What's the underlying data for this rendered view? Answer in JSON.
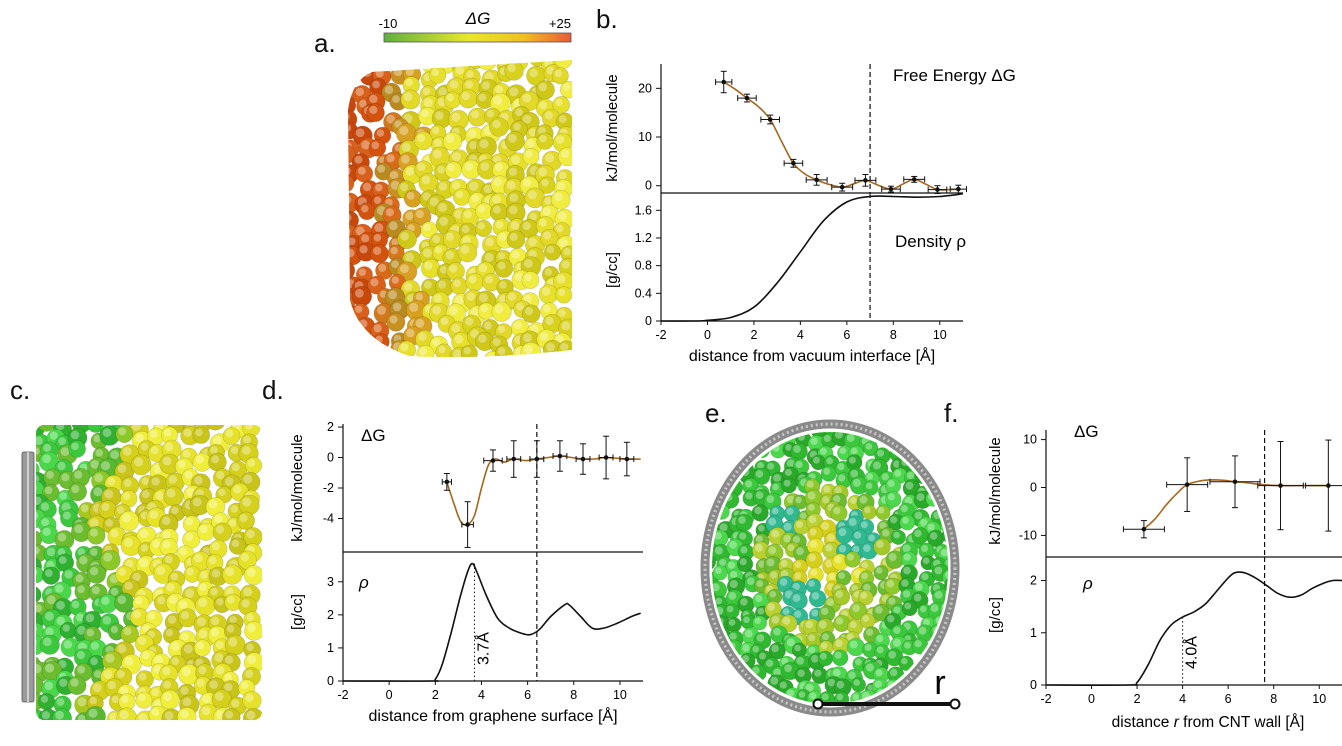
{
  "panels": {
    "a": {
      "label": "a.",
      "colorbar": {
        "symbol": "ΔG",
        "min_label": "-10",
        "max_label": "+25",
        "colors": [
          "#5fb040",
          "#e8e82a",
          "#f0c020",
          "#e85a3a"
        ]
      }
    },
    "b": {
      "label": "b."
    },
    "c": {
      "label": "c."
    },
    "d": {
      "label": "d."
    },
    "e": {
      "label": "e.",
      "scale_label": "r"
    },
    "f": {
      "label": "f."
    }
  },
  "chart_data": [
    {
      "id": "b_top",
      "type": "scatter",
      "annotation": "Free Energy ΔG",
      "ylabel": "kJ/mol/molecule",
      "xlim": [
        -2,
        11
      ],
      "ylim": [
        -1.5,
        25
      ],
      "yticks": [
        0,
        10,
        20
      ],
      "vline_x": 7.0,
      "points": [
        {
          "x": 0.7,
          "y": 21.3,
          "yerr": 2.2,
          "xerr": 0.35
        },
        {
          "x": 1.7,
          "y": 18.0,
          "yerr": 0.8,
          "xerr": 0.4
        },
        {
          "x": 2.7,
          "y": 13.6,
          "yerr": 0.9,
          "xerr": 0.4
        },
        {
          "x": 3.7,
          "y": 4.6,
          "yerr": 0.8,
          "xerr": 0.4
        },
        {
          "x": 4.7,
          "y": 1.2,
          "yerr": 1.1,
          "xerr": 0.45
        },
        {
          "x": 5.8,
          "y": -0.3,
          "yerr": 0.8,
          "xerr": 0.45
        },
        {
          "x": 6.8,
          "y": 1.1,
          "yerr": 1.2,
          "xerr": 0.45
        },
        {
          "x": 7.9,
          "y": -0.7,
          "yerr": 0.6,
          "xerr": 0.4
        },
        {
          "x": 8.9,
          "y": 1.3,
          "yerr": 0.6,
          "xerr": 0.45
        },
        {
          "x": 9.9,
          "y": -0.8,
          "yerr": 0.8,
          "xerr": 0.4
        },
        {
          "x": 10.8,
          "y": -0.7,
          "yerr": 0.8,
          "xerr": 0.35
        }
      ],
      "curve": [
        [
          0.7,
          21.3
        ],
        [
          1.2,
          19.8
        ],
        [
          1.7,
          18.0
        ],
        [
          2.2,
          16.2
        ],
        [
          2.7,
          13.6
        ],
        [
          3.2,
          9.0
        ],
        [
          3.7,
          4.6
        ],
        [
          4.2,
          2.4
        ],
        [
          4.7,
          1.2
        ],
        [
          5.2,
          0.3
        ],
        [
          5.8,
          -0.3
        ],
        [
          6.3,
          0.4
        ],
        [
          6.8,
          1.1
        ],
        [
          7.3,
          0.2
        ],
        [
          7.9,
          -0.7
        ],
        [
          8.4,
          0.3
        ],
        [
          8.9,
          1.3
        ],
        [
          9.4,
          0.3
        ],
        [
          9.9,
          -0.8
        ],
        [
          10.4,
          -0.8
        ],
        [
          10.8,
          -0.7
        ]
      ]
    },
    {
      "id": "b_bottom",
      "type": "line",
      "annotation": "Density ρ",
      "ylabel": "[g/cc]",
      "xlabel": "distance from vacuum interface [Å]",
      "xlim": [
        -2,
        11
      ],
      "ylim": [
        0,
        1.85
      ],
      "xticks": [
        -2,
        0,
        2,
        4,
        6,
        8,
        10
      ],
      "yticks": [
        0,
        0.4,
        0.8,
        1.2,
        1.6
      ],
      "vline_x": 7.0,
      "curve": [
        [
          -2,
          0
        ],
        [
          -0.5,
          0.0
        ],
        [
          0,
          0.01
        ],
        [
          1,
          0.05
        ],
        [
          2,
          0.2
        ],
        [
          3,
          0.55
        ],
        [
          4,
          1.0
        ],
        [
          5,
          1.45
        ],
        [
          6,
          1.72
        ],
        [
          7,
          1.8
        ],
        [
          8,
          1.8
        ],
        [
          9,
          1.79
        ],
        [
          10,
          1.8
        ],
        [
          11,
          1.84
        ]
      ]
    },
    {
      "id": "d_top",
      "type": "scatter",
      "annotation": "ΔG",
      "ylabel": "kJ/mol/molecule",
      "xlim": [
        -2,
        11
      ],
      "ylim": [
        -6.2,
        2.2
      ],
      "yticks": [
        -4,
        -2,
        0,
        2
      ],
      "vline_x": 6.4,
      "points": [
        {
          "x": 2.5,
          "y": -1.6,
          "yerr": 0.55,
          "xerr": 0.2
        },
        {
          "x": 3.4,
          "y": -4.4,
          "yerr": 1.5,
          "xerr": 0.25
        },
        {
          "x": 4.5,
          "y": -0.2,
          "yerr": 0.7,
          "xerr": 0.4
        },
        {
          "x": 5.4,
          "y": -0.1,
          "yerr": 1.2,
          "xerr": 0.3
        },
        {
          "x": 6.4,
          "y": -0.1,
          "yerr": 1.2,
          "xerr": 0.3
        },
        {
          "x": 7.4,
          "y": 0.1,
          "yerr": 1.0,
          "xerr": 0.3
        },
        {
          "x": 8.4,
          "y": -0.1,
          "yerr": 1.0,
          "xerr": 0.3
        },
        {
          "x": 9.4,
          "y": 0.0,
          "yerr": 1.4,
          "xerr": 0.3
        },
        {
          "x": 10.3,
          "y": -0.1,
          "yerr": 1.1,
          "xerr": 0.3
        }
      ],
      "curve": [
        [
          2.5,
          -1.6
        ],
        [
          2.8,
          -3.0
        ],
        [
          3.1,
          -4.2
        ],
        [
          3.4,
          -4.4
        ],
        [
          3.7,
          -3.8
        ],
        [
          4.0,
          -2.0
        ],
        [
          4.3,
          -0.5
        ],
        [
          4.6,
          -0.1
        ],
        [
          5.0,
          -0.3
        ],
        [
          5.4,
          -0.1
        ],
        [
          5.9,
          -0.2
        ],
        [
          6.4,
          -0.1
        ],
        [
          6.9,
          0.0
        ],
        [
          7.4,
          0.1
        ],
        [
          7.9,
          0.0
        ],
        [
          8.4,
          -0.1
        ],
        [
          8.9,
          -0.1
        ],
        [
          9.4,
          0.0
        ],
        [
          10.3,
          -0.1
        ],
        [
          10.9,
          -0.1
        ]
      ]
    },
    {
      "id": "d_bottom",
      "type": "line",
      "annotation": "ρ",
      "ylabel": "[g/cc]",
      "xlabel": "distance from graphene surface [Å]",
      "xlim": [
        -2,
        11
      ],
      "ylim": [
        0,
        3.9
      ],
      "xticks": [
        -2,
        0,
        2,
        4,
        6,
        8,
        10
      ],
      "yticks": [
        0,
        1,
        2,
        3
      ],
      "vline_x": 6.4,
      "marker_x": 3.7,
      "marker_label": "3.7Å",
      "curve": [
        [
          -2,
          0
        ],
        [
          1.8,
          0
        ],
        [
          2.0,
          0.05
        ],
        [
          2.3,
          0.5
        ],
        [
          2.7,
          1.5
        ],
        [
          3.1,
          2.6
        ],
        [
          3.4,
          3.3
        ],
        [
          3.6,
          3.55
        ],
        [
          3.8,
          3.3
        ],
        [
          4.2,
          2.6
        ],
        [
          4.7,
          1.9
        ],
        [
          5.2,
          1.6
        ],
        [
          5.7,
          1.45
        ],
        [
          6.1,
          1.4
        ],
        [
          6.5,
          1.55
        ],
        [
          7.0,
          1.95
        ],
        [
          7.6,
          2.3
        ],
        [
          7.8,
          2.3
        ],
        [
          8.3,
          1.95
        ],
        [
          8.8,
          1.6
        ],
        [
          9.3,
          1.6
        ],
        [
          9.9,
          1.75
        ],
        [
          10.5,
          1.95
        ],
        [
          10.9,
          2.05
        ]
      ]
    },
    {
      "id": "f_top",
      "type": "scatter",
      "annotation": "ΔG",
      "ylabel": "kJ/mol/molecule",
      "xlim": [
        -2,
        11
      ],
      "ylim": [
        -14.5,
        12
      ],
      "yticks": [
        -10,
        0,
        10
      ],
      "vline_x": 7.6,
      "points": [
        {
          "x": 2.3,
          "y": -8.7,
          "yerr": 1.8,
          "xerr": 0.9
        },
        {
          "x": 4.2,
          "y": 0.6,
          "yerr": 5.6,
          "xerr": 0.9
        },
        {
          "x": 6.3,
          "y": 1.2,
          "yerr": 5.4,
          "xerr": 1.1
        },
        {
          "x": 8.3,
          "y": 0.4,
          "yerr": 9.2,
          "xerr": 1.0
        },
        {
          "x": 10.4,
          "y": 0.4,
          "yerr": 9.5,
          "xerr": 1.0
        }
      ],
      "curve": [
        [
          2.3,
          -8.7
        ],
        [
          2.8,
          -6.5
        ],
        [
          3.3,
          -3.5
        ],
        [
          3.8,
          -1.0
        ],
        [
          4.2,
          0.6
        ],
        [
          4.8,
          1.4
        ],
        [
          5.3,
          1.6
        ],
        [
          5.8,
          1.5
        ],
        [
          6.3,
          1.2
        ],
        [
          6.8,
          1.0
        ],
        [
          7.3,
          0.7
        ],
        [
          7.8,
          0.5
        ],
        [
          8.3,
          0.4
        ],
        [
          9.3,
          0.4
        ],
        [
          10.4,
          0.4
        ]
      ]
    },
    {
      "id": "f_bottom",
      "type": "line",
      "annotation": "ρ",
      "ylabel": "[g/cc]",
      "xlabel_prefix": "distance ",
      "xlabel_italic": "r",
      "xlabel_suffix": " from CNT wall [Å]",
      "xlim": [
        -2,
        11
      ],
      "ylim": [
        0,
        2.45
      ],
      "xticks": [
        -2,
        0,
        2,
        4,
        6,
        8,
        10
      ],
      "yticks": [
        0,
        1,
        2
      ],
      "vline_x": 7.6,
      "marker_x": 4.0,
      "marker_label": "4.0Å",
      "curve": [
        [
          -2,
          0
        ],
        [
          1.6,
          0
        ],
        [
          2.0,
          0.05
        ],
        [
          2.5,
          0.4
        ],
        [
          3.0,
          0.85
        ],
        [
          3.5,
          1.15
        ],
        [
          4.0,
          1.3
        ],
        [
          4.5,
          1.4
        ],
        [
          5.0,
          1.55
        ],
        [
          5.5,
          1.8
        ],
        [
          6.0,
          2.05
        ],
        [
          6.3,
          2.15
        ],
        [
          6.7,
          2.15
        ],
        [
          7.2,
          2.05
        ],
        [
          7.7,
          1.9
        ],
        [
          8.2,
          1.75
        ],
        [
          8.7,
          1.68
        ],
        [
          9.2,
          1.72
        ],
        [
          9.7,
          1.85
        ],
        [
          10.2,
          1.95
        ],
        [
          10.6,
          2.0
        ],
        [
          11,
          2.0
        ]
      ]
    }
  ]
}
